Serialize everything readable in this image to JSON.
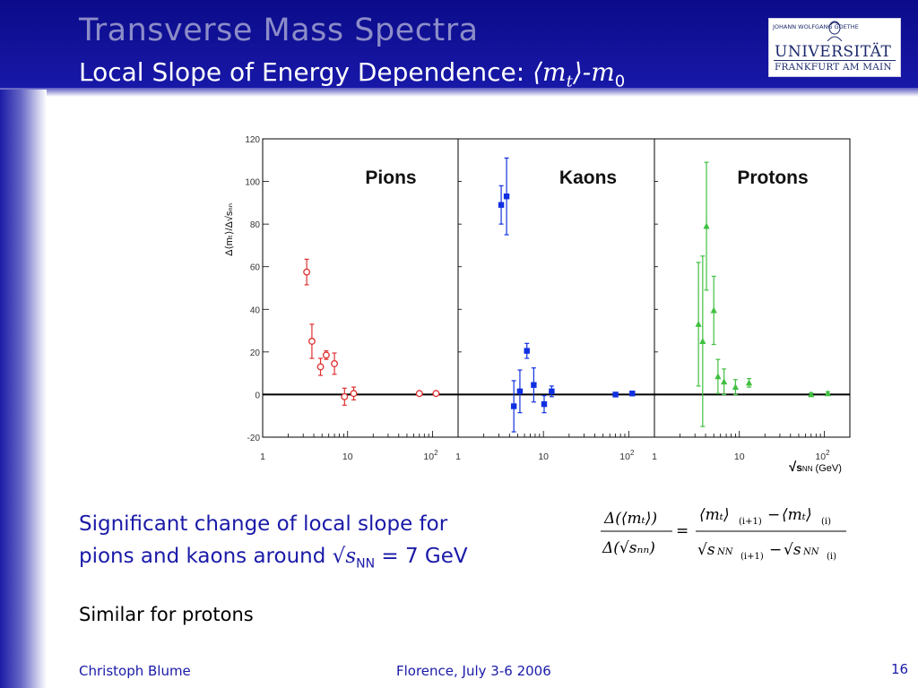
{
  "slide": {
    "title": "Transverse Mass Spectra",
    "subtitle_text": "Local Slope of Energy Dependence:  ",
    "subtitle_math_open": "⟨m",
    "subtitle_math_sub_t": "t",
    "subtitle_math_close": "⟩-m",
    "subtitle_math_sub_0": "0",
    "statement_line1": "Significant change of local slope for",
    "statement_line2_prefix": "pions and kaons around √",
    "statement_s": "s",
    "statement_sub": "NN",
    "statement_suffix": " = 7 GeV",
    "note": "Similar for protons",
    "footer_author": "Christoph Blume",
    "footer_event": "Florence, July 3-6 2006",
    "page_number": "16"
  },
  "logo": {
    "top": "JOHANN WOLFGANG     GOETHE",
    "main": "UNIVERSITÄT",
    "sub": "FRANKFURT AM MAIN"
  },
  "formula": {
    "lhs_num": "Δ(⟨mₜ⟩)",
    "lhs_den": "Δ(√sₙₙ)",
    "equals": "=",
    "rhs_num_a": "⟨mₜ⟩",
    "rhs_num_a_sub": "(i+1)",
    "rhs_minus": "−",
    "rhs_num_b": "⟨mₜ⟩",
    "rhs_num_b_sub": "(i)",
    "rhs_den_a": "√s",
    "rhs_den_a_nn": "NN",
    "rhs_den_a_sub": "(i+1)",
    "rhs_den_b": "√s",
    "rhs_den_b_nn": "NN",
    "rhs_den_b_sub": "(i)"
  },
  "chart_data": {
    "type": "scatter",
    "ylabel": "Δ⟨mₜ⟩/Δ√sₙₙ",
    "xlabel": "√sₙₙ (GeV)",
    "xlabel_parts": {
      "root": "√",
      "s": "s",
      "nn": "NN",
      "unit": "(GeV)"
    },
    "x_scale": "log",
    "xlim": [
      1,
      200
    ],
    "ylim": [
      -20,
      120
    ],
    "yticks": [
      -20,
      0,
      20,
      40,
      60,
      80,
      100,
      120
    ],
    "xticks": [
      {
        "value": 1,
        "label": "1"
      },
      {
        "value": 10,
        "label": "10"
      },
      {
        "value": 100,
        "label": "10",
        "exp": "2"
      }
    ],
    "zero_line": true,
    "series": [
      {
        "name": "Pions",
        "color": "#e03030",
        "marker": "circle-open",
        "points": [
          {
            "x": 3.3,
            "y": 57.5,
            "err": 6
          },
          {
            "x": 3.8,
            "y": 25,
            "err": 8
          },
          {
            "x": 4.8,
            "y": 13,
            "err": 4
          },
          {
            "x": 5.6,
            "y": 18.5,
            "err": 2
          },
          {
            "x": 7.0,
            "y": 14.5,
            "err": 5
          },
          {
            "x": 9.2,
            "y": -1,
            "err": 4
          },
          {
            "x": 11.8,
            "y": 0.5,
            "err": 3
          },
          {
            "x": 70,
            "y": 0.5,
            "err": 0.8
          },
          {
            "x": 110,
            "y": 0.5,
            "err": 0.8
          }
        ]
      },
      {
        "name": "Kaons",
        "color": "#1030e0",
        "marker": "square",
        "points": [
          {
            "x": 3.2,
            "y": 89,
            "err": 9
          },
          {
            "x": 3.7,
            "y": 93,
            "err": 18
          },
          {
            "x": 4.5,
            "y": -5.5,
            "err": 12
          },
          {
            "x": 5.3,
            "y": 1.5,
            "err": 10
          },
          {
            "x": 6.4,
            "y": 20.5,
            "err": 3.5
          },
          {
            "x": 7.7,
            "y": 4.5,
            "err": 8
          },
          {
            "x": 10.2,
            "y": -4.5,
            "err": 4
          },
          {
            "x": 12.5,
            "y": 1.5,
            "err": 2.5
          },
          {
            "x": 70,
            "y": 0,
            "err": 0.8
          },
          {
            "x": 110,
            "y": 0.5,
            "err": 0.8
          }
        ]
      },
      {
        "name": "Protons",
        "color": "#40c040",
        "marker": "triangle",
        "points": [
          {
            "x": 3.3,
            "y": 33,
            "err": 29
          },
          {
            "x": 3.7,
            "y": 25,
            "err": 40
          },
          {
            "x": 4.1,
            "y": 79,
            "err": 30
          },
          {
            "x": 5.0,
            "y": 39.5,
            "err": 16
          },
          {
            "x": 5.6,
            "y": 8.5,
            "err": 8
          },
          {
            "x": 6.6,
            "y": 6,
            "err": 6
          },
          {
            "x": 9.0,
            "y": 3.5,
            "err": 3.5
          },
          {
            "x": 13.0,
            "y": 5.5,
            "err": 2
          },
          {
            "x": 70,
            "y": 0,
            "err": 0.8
          },
          {
            "x": 110,
            "y": 0.5,
            "err": 0.8
          }
        ]
      }
    ]
  }
}
